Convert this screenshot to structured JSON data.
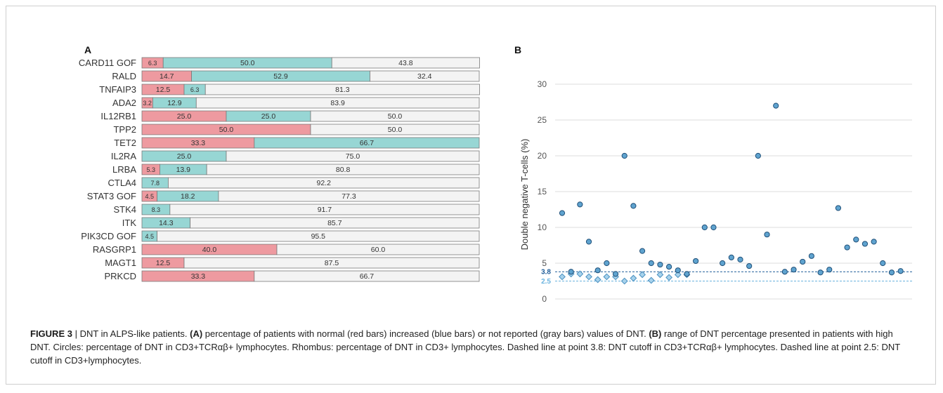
{
  "colors": {
    "normal": "#ee9aa0",
    "increased": "#97d6d4",
    "not_reported": "#f3f3f3",
    "bar_border": "#7a7a7a",
    "dot_fill": "#5fa3cf",
    "dot_stroke": "#1f4f78",
    "rhombus_fill": "#a7d2ec",
    "rhombus_stroke": "#4a90c0",
    "cutoff_38": "#1f5d99",
    "cutoff_25": "#6ab3df",
    "grid": "#dddddd"
  },
  "chart_data": [
    {
      "panel": "A",
      "type": "bar",
      "stacked": true,
      "orientation": "horizontal",
      "categories": [
        "CARD11 GOF",
        "RALD",
        "TNFAIP3",
        "ADA2",
        "IL12RB1",
        "TPP2",
        "TET2",
        "IL2RA",
        "LRBA",
        "CTLA4",
        "STAT3 GOF",
        "STK4",
        "ITK",
        "PIK3CD GOF",
        "RASGRP1",
        "MAGT1",
        "PRKCD"
      ],
      "series": [
        {
          "key": "normal",
          "values": [
            6.3,
            14.7,
            12.5,
            3.2,
            25.0,
            50.0,
            33.3,
            0,
            5.3,
            0,
            4.5,
            0,
            0,
            0,
            40.0,
            12.5,
            33.3
          ]
        },
        {
          "key": "increased",
          "values": [
            50.0,
            52.9,
            6.3,
            12.9,
            25.0,
            0,
            66.7,
            25.0,
            13.9,
            7.8,
            18.2,
            8.3,
            14.3,
            4.5,
            0,
            0,
            0
          ]
        },
        {
          "key": "not_reported",
          "values": [
            43.8,
            32.4,
            81.3,
            83.9,
            50.0,
            50.0,
            0,
            75.0,
            80.8,
            92.2,
            77.3,
            91.7,
            85.7,
            95.5,
            60.0,
            87.5,
            66.7
          ]
        }
      ],
      "labels": [
        [
          "6.3",
          "50.0",
          "43.8"
        ],
        [
          "14.7",
          "52.9",
          "32.4"
        ],
        [
          "12.5",
          "6.3",
          "81.3"
        ],
        [
          "3.2",
          "12.9",
          "83.9"
        ],
        [
          "25.0",
          "25.0",
          "50.0"
        ],
        [
          "50.0",
          "",
          "50.0"
        ],
        [
          "33.3",
          "66.7",
          ""
        ],
        [
          "",
          "25.0",
          "75.0"
        ],
        [
          "5.3",
          "13.9",
          "80.8"
        ],
        [
          "",
          "7.8",
          "92.2"
        ],
        [
          "4.5",
          "18.2",
          "77.3"
        ],
        [
          "",
          "8.3",
          "91.7"
        ],
        [
          "",
          "14.3",
          "85.7"
        ],
        [
          "",
          "4.5",
          "95.5"
        ],
        [
          "40.0",
          "",
          "60.0"
        ],
        [
          "12.5",
          "",
          "87.5"
        ],
        [
          "33.3",
          "",
          "66.7"
        ]
      ],
      "xlim": [
        0,
        100
      ]
    },
    {
      "panel": "B",
      "type": "scatter",
      "ylabel": "Double negative T-cells (%)",
      "ylim": [
        0,
        30
      ],
      "yticks": [
        "0",
        "5",
        "10",
        "15",
        "20",
        "25",
        "30"
      ],
      "grid": true,
      "circles": [
        [
          1,
          12.0
        ],
        [
          2,
          3.8
        ],
        [
          3,
          13.2
        ],
        [
          4,
          8.0
        ],
        [
          5,
          4.0
        ],
        [
          6,
          5.0
        ],
        [
          7,
          3.5
        ],
        [
          8,
          20.0
        ],
        [
          9,
          13.0
        ],
        [
          10,
          6.7
        ],
        [
          11,
          5.0
        ],
        [
          12,
          4.8
        ],
        [
          13,
          4.5
        ],
        [
          14,
          4.0
        ],
        [
          15,
          3.5
        ],
        [
          16,
          5.3
        ],
        [
          17,
          10.0
        ],
        [
          18,
          10.0
        ],
        [
          19,
          5.0
        ],
        [
          20,
          5.8
        ],
        [
          21,
          5.5
        ],
        [
          22,
          4.6
        ],
        [
          23,
          20.0
        ],
        [
          24,
          9.0
        ],
        [
          25,
          27.0
        ],
        [
          26,
          3.8
        ],
        [
          27,
          4.1
        ],
        [
          28,
          5.2
        ],
        [
          29,
          6.0
        ],
        [
          30,
          3.7
        ],
        [
          31,
          4.1
        ],
        [
          32,
          12.7
        ],
        [
          33,
          7.2
        ],
        [
          34,
          8.3
        ],
        [
          35,
          7.7
        ],
        [
          36,
          8.0
        ],
        [
          37,
          5.0
        ],
        [
          38,
          3.7
        ],
        [
          39,
          3.9
        ]
      ],
      "rhombuses": [
        [
          1,
          3.1
        ],
        [
          2,
          3.5
        ],
        [
          3,
          3.5
        ],
        [
          4,
          3.1
        ],
        [
          5,
          2.7
        ],
        [
          6,
          3.1
        ],
        [
          7,
          3.1
        ],
        [
          8,
          2.5
        ],
        [
          9,
          2.9
        ],
        [
          10,
          3.4
        ],
        [
          11,
          2.6
        ],
        [
          12,
          3.4
        ],
        [
          13,
          3.0
        ],
        [
          14,
          3.4
        ],
        [
          15,
          3.4
        ]
      ],
      "cutoffs": [
        {
          "value": 3.8,
          "label": "3.8"
        },
        {
          "value": 2.5,
          "label": "2.5"
        }
      ]
    }
  ],
  "caption": {
    "figure_label": "FIGURE 3",
    "separator": " | ",
    "p1": "DNT in ALPS-like patients. ",
    "a_label": "(A)",
    "p2": " percentage of patients with normal (red bars) increased (blue bars) or not reported (gray bars) values of DNT. ",
    "b_label": "(B)",
    "p3": " range of DNT percentage presented in patients with high DNT. Circles: percentage of DNT in CD3+TCRαβ+ lymphocytes. Rhombus: percentage of DNT in CD3+ lymphocytes. Dashed line at point 3.8: DNT cutoff in CD3+TCRαβ+ lymphocytes. Dashed line at point 2.5: DNT cutoff in CD3+lymphocytes."
  }
}
